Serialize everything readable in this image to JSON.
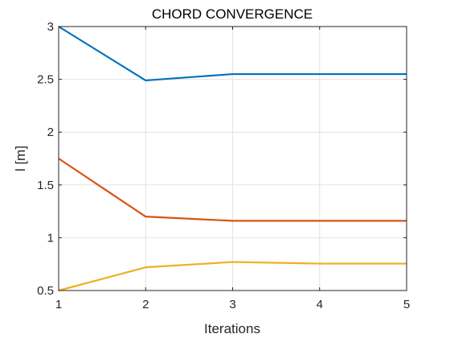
{
  "chart_data": {
    "type": "line",
    "title": "CHORD CONVERGENCE",
    "xlabel": "Iterations",
    "ylabel": "l [m]",
    "x": [
      1,
      2,
      3,
      4,
      5
    ],
    "xlim": [
      1,
      5
    ],
    "ylim": [
      0.5,
      3
    ],
    "xticks": [
      "1",
      "2",
      "3",
      "4",
      "5"
    ],
    "yticks": [
      "0.5",
      "1",
      "1.5",
      "2",
      "2.5",
      "3"
    ],
    "grid": true,
    "series": [
      {
        "color": "#0072BD",
        "values": [
          3.0,
          2.49,
          2.55,
          2.55,
          2.55
        ]
      },
      {
        "color": "#D95319",
        "values": [
          1.75,
          1.2,
          1.16,
          1.16,
          1.16
        ]
      },
      {
        "color": "#EDB120",
        "values": [
          0.5,
          0.72,
          0.77,
          0.755,
          0.755
        ]
      }
    ]
  }
}
